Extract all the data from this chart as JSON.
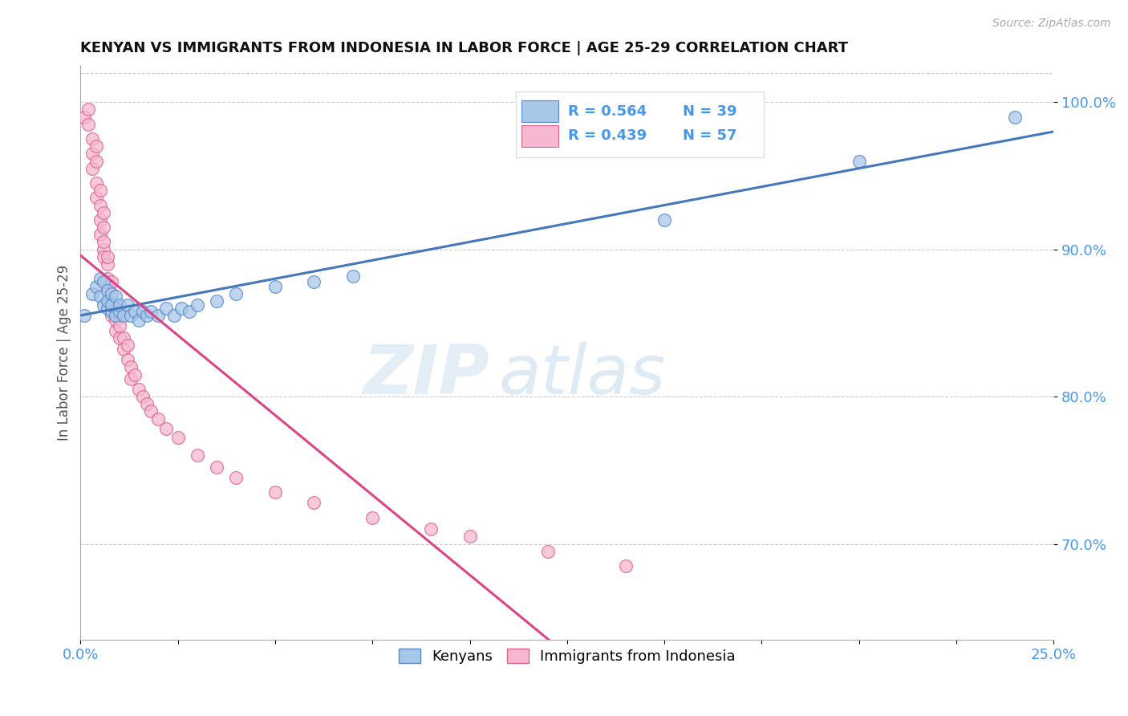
{
  "title": "KENYAN VS IMMIGRANTS FROM INDONESIA IN LABOR FORCE | AGE 25-29 CORRELATION CHART",
  "source": "Source: ZipAtlas.com",
  "ylabel_label": "In Labor Force | Age 25-29",
  "xlim": [
    0.0,
    0.25
  ],
  "ylim": [
    0.635,
    1.025
  ],
  "xticks": [
    0.0,
    0.025,
    0.05,
    0.075,
    0.1,
    0.125,
    0.15,
    0.175,
    0.2,
    0.225,
    0.25
  ],
  "xticklabels": [
    "0.0%",
    "",
    "",
    "",
    "",
    "",
    "",
    "",
    "",
    "",
    "25.0%"
  ],
  "ytick_positions": [
    0.7,
    0.8,
    0.9,
    1.0
  ],
  "ytick_labels": [
    "70.0%",
    "80.0%",
    "90.0%",
    "100.0%"
  ],
  "blue_color": "#a8c8e8",
  "pink_color": "#f5b8d0",
  "blue_edge_color": "#5588cc",
  "pink_edge_color": "#e06090",
  "blue_line_color": "#4477bb",
  "pink_line_color": "#dd4488",
  "legend_r_blue": "R = 0.564",
  "legend_n_blue": "N = 39",
  "legend_r_pink": "R = 0.439",
  "legend_n_pink": "N = 57",
  "watermark_zip": "ZIP",
  "watermark_atlas": "atlas",
  "kenyan_x": [
    0.001,
    0.003,
    0.004,
    0.005,
    0.005,
    0.006,
    0.006,
    0.007,
    0.007,
    0.007,
    0.008,
    0.008,
    0.008,
    0.009,
    0.009,
    0.01,
    0.01,
    0.011,
    0.012,
    0.013,
    0.014,
    0.015,
    0.016,
    0.017,
    0.018,
    0.02,
    0.022,
    0.024,
    0.026,
    0.028,
    0.03,
    0.035,
    0.04,
    0.05,
    0.06,
    0.07,
    0.15,
    0.2,
    0.24
  ],
  "kenyan_y": [
    0.855,
    0.87,
    0.875,
    0.88,
    0.868,
    0.862,
    0.878,
    0.86,
    0.872,
    0.865,
    0.858,
    0.87,
    0.862,
    0.855,
    0.868,
    0.858,
    0.862,
    0.855,
    0.862,
    0.855,
    0.858,
    0.852,
    0.858,
    0.855,
    0.858,
    0.855,
    0.86,
    0.855,
    0.86,
    0.858,
    0.862,
    0.865,
    0.87,
    0.875,
    0.878,
    0.882,
    0.92,
    0.96,
    0.99
  ],
  "indonesia_x": [
    0.001,
    0.002,
    0.002,
    0.003,
    0.003,
    0.003,
    0.004,
    0.004,
    0.004,
    0.004,
    0.005,
    0.005,
    0.005,
    0.005,
    0.006,
    0.006,
    0.006,
    0.006,
    0.006,
    0.007,
    0.007,
    0.007,
    0.007,
    0.008,
    0.008,
    0.008,
    0.008,
    0.009,
    0.009,
    0.009,
    0.01,
    0.01,
    0.01,
    0.011,
    0.011,
    0.012,
    0.012,
    0.013,
    0.013,
    0.014,
    0.015,
    0.016,
    0.017,
    0.018,
    0.02,
    0.022,
    0.025,
    0.03,
    0.035,
    0.04,
    0.05,
    0.06,
    0.075,
    0.09,
    0.1,
    0.12,
    0.14
  ],
  "indonesia_y": [
    0.99,
    0.995,
    0.985,
    0.975,
    0.965,
    0.955,
    0.945,
    0.935,
    0.96,
    0.97,
    0.92,
    0.91,
    0.93,
    0.94,
    0.9,
    0.895,
    0.905,
    0.915,
    0.925,
    0.89,
    0.88,
    0.895,
    0.875,
    0.87,
    0.862,
    0.855,
    0.878,
    0.86,
    0.852,
    0.845,
    0.84,
    0.855,
    0.848,
    0.84,
    0.832,
    0.835,
    0.825,
    0.82,
    0.812,
    0.815,
    0.805,
    0.8,
    0.795,
    0.79,
    0.785,
    0.778,
    0.772,
    0.76,
    0.752,
    0.745,
    0.735,
    0.728,
    0.718,
    0.71,
    0.705,
    0.695,
    0.685
  ]
}
